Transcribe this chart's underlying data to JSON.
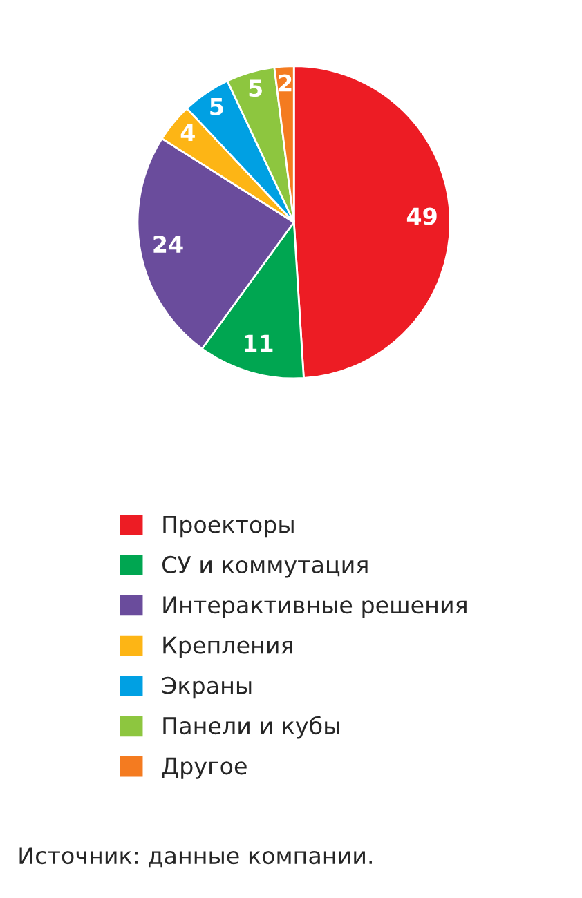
{
  "chart_data": {
    "type": "pie",
    "categories": [
      "Проекторы",
      "СУ и коммутация",
      "Интерактивные решения",
      "Крепления",
      "Экраны",
      "Панели и кубы",
      "Другое"
    ],
    "values": [
      49,
      11,
      24,
      4,
      5,
      5,
      2
    ],
    "colors": [
      "#ed1c24",
      "#00a651",
      "#6a4c9c",
      "#fdb515",
      "#00a0e3",
      "#8dc63f",
      "#f47b20"
    ],
    "data_labels": true,
    "legend": "bottom",
    "annotations": [
      "Источник: данные компании."
    ]
  }
}
